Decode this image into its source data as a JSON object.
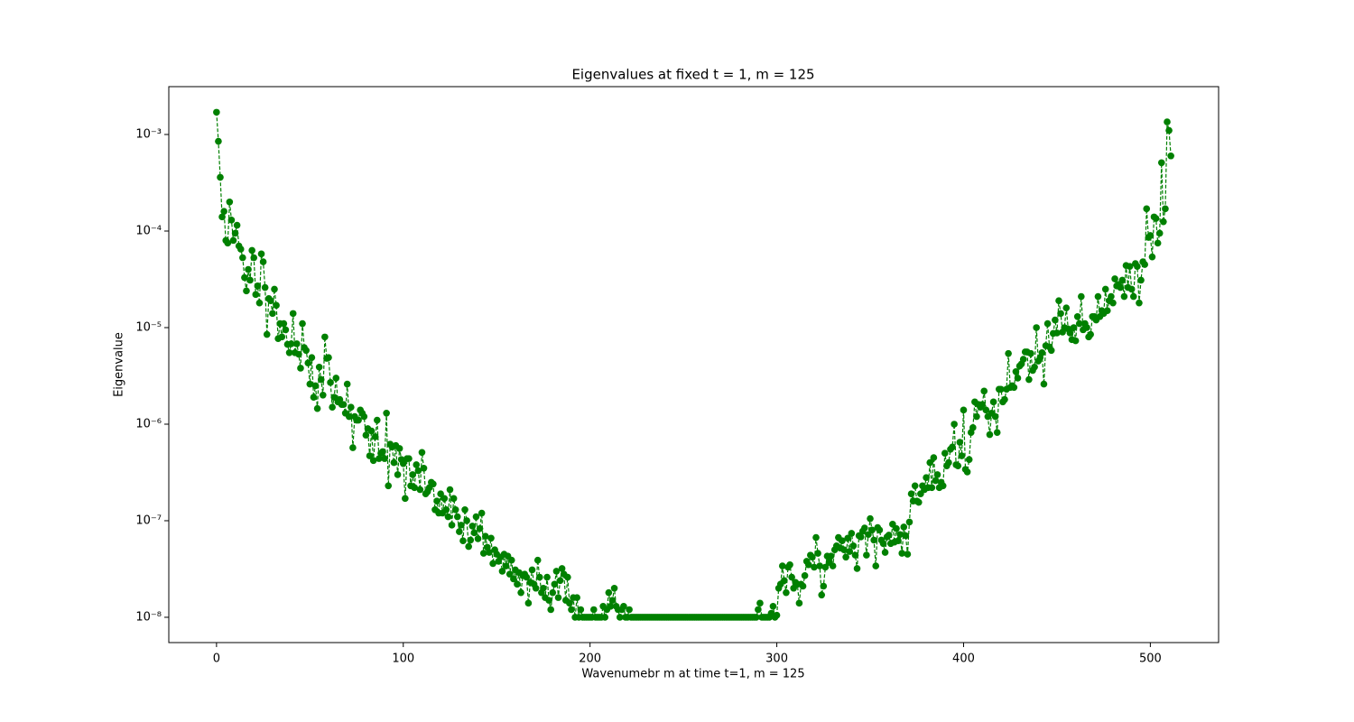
{
  "chart_data": {
    "type": "line",
    "title": "Eigenvalues at fixed t = 1, m = 125",
    "xlabel": "Wavenumebr m at time t=1, m = 125",
    "ylabel": "Eigenvalue",
    "yscale": "log",
    "marker": "o",
    "linestyle": "dashed",
    "xlim": [
      -25.55,
      536.55
    ],
    "ylim": [
      5.47e-09,
      0.00313
    ],
    "xticks": [
      0,
      100,
      200,
      300,
      400,
      500
    ],
    "yticks": [
      {
        "value": 1e-08,
        "label": "10⁻⁸"
      },
      {
        "value": 1e-07,
        "label": "10⁻⁷"
      },
      {
        "value": 1e-06,
        "label": "10⁻⁶"
      },
      {
        "value": 1e-05,
        "label": "10⁻⁵"
      },
      {
        "value": 0.0001,
        "label": "10⁻⁴"
      },
      {
        "value": 0.001,
        "label": "10⁻³"
      }
    ],
    "x": [
      0,
      1,
      2,
      3,
      4,
      5,
      6,
      7,
      8,
      9,
      10,
      11,
      12,
      13,
      14,
      15,
      16,
      17,
      18,
      19,
      20,
      21,
      22,
      23,
      24,
      25,
      26,
      27,
      28,
      29,
      30,
      31,
      32,
      33,
      34,
      35,
      36,
      37,
      38,
      39,
      40,
      41,
      42,
      43,
      44,
      45,
      46,
      47,
      48,
      49,
      50,
      51,
      52,
      53,
      54,
      55,
      56,
      57,
      58,
      59,
      60,
      61,
      62,
      63,
      64,
      65,
      66,
      67,
      68,
      69,
      70,
      71,
      72,
      73,
      74,
      75,
      76,
      77,
      78,
      79,
      80,
      81,
      82,
      83,
      84,
      85,
      86,
      87,
      88,
      89,
      90,
      91,
      92,
      93,
      94,
      95,
      96,
      97,
      98,
      99,
      100,
      101,
      102,
      103,
      104,
      105,
      106,
      107,
      108,
      109,
      110,
      111,
      112,
      113,
      114,
      115,
      116,
      117,
      118,
      119,
      120,
      121,
      122,
      123,
      124,
      125,
      126,
      127,
      128,
      129,
      130,
      131,
      132,
      133,
      134,
      135,
      136,
      137,
      138,
      139,
      140,
      141,
      142,
      143,
      144,
      145,
      146,
      147,
      148,
      149,
      150,
      151,
      152,
      153,
      154,
      155,
      156,
      157,
      158,
      159,
      160,
      161,
      162,
      163,
      164,
      165,
      166,
      167,
      168,
      169,
      170,
      171,
      172,
      173,
      174,
      175,
      176,
      177,
      178,
      179,
      180,
      181,
      182,
      183,
      184,
      185,
      186,
      187,
      188,
      189,
      190,
      191,
      192,
      193,
      194,
      195,
      196,
      197,
      198,
      199,
      200,
      201,
      202,
      203,
      204,
      205,
      206,
      207,
      208,
      209,
      210,
      211,
      212,
      213,
      214,
      215,
      216,
      217,
      218,
      219,
      220,
      221,
      222,
      223,
      224,
      225,
      226,
      227,
      228,
      229,
      230,
      231,
      232,
      233,
      234,
      235,
      236,
      237,
      238,
      239,
      240,
      241,
      242,
      243,
      244,
      245,
      246,
      247,
      248,
      249,
      250,
      251,
      252,
      253,
      254,
      255,
      256,
      257,
      258,
      259,
      260,
      261,
      262,
      263,
      264,
      265,
      266,
      267,
      268,
      269,
      270,
      271,
      272,
      273,
      274,
      275,
      276,
      277,
      278,
      279,
      280,
      281,
      282,
      283,
      284,
      285,
      286,
      287,
      288,
      289,
      290,
      291,
      292,
      293,
      294,
      295,
      296,
      297,
      298,
      299,
      300,
      301,
      302,
      303,
      304,
      305,
      306,
      307,
      308,
      309,
      310,
      311,
      312,
      313,
      314,
      315,
      316,
      317,
      318,
      319,
      320,
      321,
      322,
      323,
      324,
      325,
      326,
      327,
      328,
      329,
      330,
      331,
      332,
      333,
      334,
      335,
      336,
      337,
      338,
      339,
      340,
      341,
      342,
      343,
      344,
      345,
      346,
      347,
      348,
      349,
      350,
      351,
      352,
      353,
      354,
      355,
      356,
      357,
      358,
      359,
      360,
      361,
      362,
      363,
      364,
      365,
      366,
      367,
      368,
      369,
      370,
      371,
      372,
      373,
      374,
      375,
      376,
      377,
      378,
      379,
      380,
      381,
      382,
      383,
      384,
      385,
      386,
      387,
      388,
      389,
      390,
      391,
      392,
      393,
      394,
      395,
      396,
      397,
      398,
      399,
      400,
      401,
      402,
      403,
      404,
      405,
      406,
      407,
      408,
      409,
      410,
      411,
      412,
      413,
      414,
      415,
      416,
      417,
      418,
      419,
      420,
      421,
      422,
      423,
      424,
      425,
      426,
      427,
      428,
      429,
      430,
      431,
      432,
      433,
      434,
      435,
      436,
      437,
      438,
      439,
      440,
      441,
      442,
      443,
      444,
      445,
      446,
      447,
      448,
      449,
      450,
      451,
      452,
      453,
      454,
      455,
      456,
      457,
      458,
      459,
      460,
      461,
      462,
      463,
      464,
      465,
      466,
      467,
      468,
      469,
      470,
      471,
      472,
      473,
      474,
      475,
      476,
      477,
      478,
      479,
      480,
      481,
      482,
      483,
      484,
      485,
      486,
      487,
      488,
      489,
      490,
      491,
      492,
      493,
      494,
      495,
      496,
      497,
      498,
      499,
      500,
      501,
      502,
      503,
      504,
      505,
      506,
      507,
      508,
      509,
      510,
      511
    ],
    "series": [
      {
        "color": "#008000",
        "values": [
          0.0017,
          0.00085,
          0.00036,
          0.00014,
          0.00016,
          8e-05,
          7.5e-05,
          0.0002,
          0.00013,
          8e-05,
          9.5e-05,
          0.000115,
          7e-05,
          6.5e-05,
          5.3e-05,
          3.3e-05,
          2.4e-05,
          4e-05,
          3.1e-05,
          6.3e-05,
          5.3e-05,
          2.2e-05,
          2.7e-05,
          1.8e-05,
          5.8e-05,
          4.8e-05,
          2.6e-05,
          8.5e-06,
          2e-05,
          1.9e-05,
          1.4e-05,
          2.5e-05,
          1.7e-05,
          7.7e-06,
          1.1e-05,
          8e-06,
          1.1e-05,
          9.5e-06,
          6.7e-06,
          5.5e-06,
          6.8e-06,
          1.4e-05,
          5.5e-06,
          6.8e-06,
          5.3e-06,
          3.8e-06,
          1.1e-05,
          6.2e-06,
          5.8e-06,
          4.3e-06,
          2.6e-06,
          4.9e-06,
          1.9e-06,
          2.5e-06,
          1.45e-06,
          3.9e-06,
          2.9e-06,
          2e-06,
          8e-06,
          4.8e-06,
          4.9e-06,
          2.7e-06,
          1.5e-06,
          1.9e-06,
          3e-06,
          1.7e-06,
          1.8e-06,
          1.6e-06,
          1.6e-06,
          1.3e-06,
          2.6e-06,
          1.2e-06,
          1.5e-06,
          5.7e-07,
          1.2e-06,
          1.1e-06,
          1.1e-06,
          1.4e-06,
          1.3e-06,
          1.2e-06,
          7.7e-07,
          9e-07,
          4.7e-07,
          8.5e-07,
          4.2e-07,
          7.4e-07,
          1.1e-06,
          4.4e-07,
          5e-07,
          5.2e-07,
          4.4e-07,
          1.3e-06,
          2.3e-07,
          6.2e-07,
          5.8e-07,
          4e-07,
          6e-07,
          3e-07,
          5.6e-07,
          4.3e-07,
          3.9e-07,
          1.7e-07,
          4.4e-07,
          4.4e-07,
          2.3e-07,
          3e-07,
          2.2e-07,
          3.8e-07,
          3.3e-07,
          2.1e-07,
          5.1e-07,
          3.5e-07,
          1.9e-07,
          2e-07,
          2.2e-07,
          2.5e-07,
          2.4e-07,
          1.3e-07,
          1.6e-07,
          1.2e-07,
          1.9e-07,
          1.2e-07,
          1.7e-07,
          1.3e-07,
          1.1e-07,
          2.1e-07,
          9e-08,
          1.7e-07,
          1.3e-07,
          1.1e-07,
          7.7e-08,
          9e-08,
          6.2e-08,
          1.3e-07,
          1e-07,
          5.4e-08,
          6.3e-08,
          8.8e-08,
          7.5e-08,
          1.1e-07,
          6.5e-08,
          8.3e-08,
          1.2e-07,
          4.6e-08,
          6.9e-08,
          5.3e-08,
          4.7e-08,
          6.6e-08,
          3.6e-08,
          5e-08,
          4.5e-08,
          3.8e-08,
          4.2e-08,
          3e-08,
          4.5e-08,
          3.4e-08,
          4.3e-08,
          2.8e-08,
          3.9e-08,
          2.5e-08,
          3.1e-08,
          2.2e-08,
          2.9e-08,
          1.8e-08,
          2.7e-08,
          2.8e-08,
          2.6e-08,
          1.4e-08,
          2.3e-08,
          3.1e-08,
          2.2e-08,
          2e-08,
          3.9e-08,
          2.6e-08,
          1.8e-08,
          2e-08,
          1.6e-08,
          2.6e-08,
          1.5e-08,
          1.2e-08,
          1.8e-08,
          2.2e-08,
          3e-08,
          1.6e-08,
          2.4e-08,
          3.2e-08,
          2.8e-08,
          1.5e-08,
          2.6e-08,
          1.4e-08,
          1.2e-08,
          1.6e-08,
          1e-08,
          1.6e-08,
          1e-08,
          1.2e-08,
          1e-08,
          1e-08,
          1e-08,
          1e-08,
          1e-08,
          1e-08,
          1.2e-08,
          1e-08,
          1e-08,
          1e-08,
          1e-08,
          1.3e-08,
          1e-08,
          1.2e-08,
          1.8e-08,
          1.3e-08,
          1.5e-08,
          2e-08,
          1.3e-08,
          1.2e-08,
          1e-08,
          1.2e-08,
          1.3e-08,
          1e-08,
          1e-08,
          1.2e-08,
          1e-08,
          1e-08,
          1e-08,
          1e-08,
          1e-08,
          1e-08,
          1e-08,
          1e-08,
          1e-08,
          1e-08,
          1e-08,
          1e-08,
          1e-08,
          1e-08,
          1e-08,
          1e-08,
          1e-08,
          1e-08,
          1e-08,
          1e-08,
          1e-08,
          1e-08,
          1e-08,
          1e-08,
          1e-08,
          1e-08,
          1e-08,
          1e-08,
          1e-08,
          1e-08,
          1e-08,
          1e-08,
          1e-08,
          1e-08,
          1e-08,
          1e-08,
          1e-08,
          1e-08,
          1e-08,
          1e-08,
          1e-08,
          1e-08,
          1e-08,
          1e-08,
          1e-08,
          1e-08,
          1e-08,
          1e-08,
          1e-08,
          1e-08,
          1e-08,
          1e-08,
          1e-08,
          1e-08,
          1e-08,
          1e-08,
          1e-08,
          1e-08,
          1e-08,
          1e-08,
          1e-08,
          1e-08,
          1e-08,
          1e-08,
          1e-08,
          1e-08,
          1e-08,
          1e-08,
          1.2e-08,
          1.4e-08,
          1e-08,
          1e-08,
          1e-08,
          1e-08,
          1e-08,
          1.1e-08,
          1.3e-08,
          1e-08,
          1.05e-08,
          2e-08,
          2.2e-08,
          3.4e-08,
          2.4e-08,
          1.8e-08,
          3.3e-08,
          3.5e-08,
          2.6e-08,
          2e-08,
          2.3e-08,
          2.2e-08,
          1.4e-08,
          2.2e-08,
          2.1e-08,
          2.7e-08,
          3.8e-08,
          3.5e-08,
          4.4e-08,
          4.2e-08,
          3.3e-08,
          6.7e-08,
          4.6e-08,
          3.4e-08,
          1.7e-08,
          2.1e-08,
          3.3e-08,
          4.3e-08,
          3.7e-08,
          4.3e-08,
          3.4e-08,
          5e-08,
          5.5e-08,
          6.7e-08,
          5.2e-08,
          6.2e-08,
          5e-08,
          4.2e-08,
          6.6e-08,
          4.8e-08,
          7.4e-08,
          5.5e-08,
          4.4e-08,
          3.2e-08,
          7e-08,
          6.8e-08,
          7.8e-08,
          8.4e-08,
          4.4e-08,
          7.2e-08,
          1.05e-07,
          8e-08,
          6.3e-08,
          3.4e-08,
          8.5e-08,
          8e-08,
          6.3e-08,
          5.8e-08,
          4.7e-08,
          6.8e-08,
          7.1e-08,
          5.8e-08,
          9.2e-08,
          6e-08,
          8.3e-08,
          6.2e-08,
          7.2e-08,
          4.6e-08,
          8.6e-08,
          7e-08,
          4.5e-08,
          9.7e-08,
          1.9e-07,
          1.6e-07,
          2.3e-07,
          1.6e-07,
          1.55e-07,
          1.9e-07,
          2.3e-07,
          2.1e-07,
          2.8e-07,
          2.2e-07,
          4e-07,
          2.2e-07,
          4.5e-07,
          2.6e-07,
          3e-07,
          2.2e-07,
          2.5e-07,
          2.3e-07,
          5e-07,
          3.7e-07,
          4e-07,
          5.5e-07,
          5.8e-07,
          1e-06,
          3.8e-07,
          3.7e-07,
          6.5e-07,
          4.7e-07,
          1.4e-06,
          3.4e-07,
          3.2e-07,
          4.3e-07,
          8.2e-07,
          9.2e-07,
          1.7e-06,
          1.2e-06,
          1.6e-06,
          1.5e-06,
          1.6e-06,
          2.2e-06,
          1.4e-06,
          1.2e-06,
          7.8e-07,
          1.3e-06,
          1.7e-06,
          1.2e-06,
          8.2e-07,
          2.3e-06,
          2.3e-06,
          1.7e-06,
          1.8e-06,
          2.3e-06,
          5.4e-06,
          2.4e-06,
          2.5e-06,
          2.4e-06,
          3.5e-06,
          3e-06,
          4e-06,
          4.2e-06,
          4.7e-06,
          5.6e-06,
          5.6e-06,
          2.9e-06,
          5.4e-06,
          3.6e-06,
          3.9e-06,
          1e-05,
          4.5e-06,
          4.9e-06,
          5.5e-06,
          2.6e-06,
          6.5e-06,
          1.1e-05,
          6.3e-06,
          5.8e-06,
          8.7e-06,
          1.2e-05,
          8.8e-06,
          1.9e-05,
          1.4e-05,
          9e-06,
          1e-05,
          1.6e-05,
          9.7e-06,
          8.8e-06,
          7.5e-06,
          1e-05,
          7.3e-06,
          1.3e-05,
          1.1e-05,
          2.1e-05,
          9.5e-06,
          1.1e-05,
          1e-05,
          8e-06,
          8.5e-06,
          1.3e-05,
          1.3e-05,
          1.2e-05,
          2.1e-05,
          1.3e-05,
          1.5e-05,
          1.4e-05,
          2.5e-05,
          1.5e-05,
          1.9e-05,
          2.1e-05,
          1.8e-05,
          3.2e-05,
          2.7e-05,
          2.8e-05,
          2.6e-05,
          3.1e-05,
          2.1e-05,
          4.4e-05,
          2.6e-05,
          4.3e-05,
          2.5e-05,
          2.1e-05,
          4.6e-05,
          4.3e-05,
          1.8e-05,
          3.1e-05,
          4.8e-05,
          4.5e-05,
          0.00017,
          8.6e-05,
          9e-05,
          5.4e-05,
          0.00014,
          0.000135,
          7.5e-05,
          9.5e-05,
          0.00051,
          0.000125,
          0.00017,
          0.00135,
          0.0011,
          0.0006
        ]
      }
    ]
  }
}
